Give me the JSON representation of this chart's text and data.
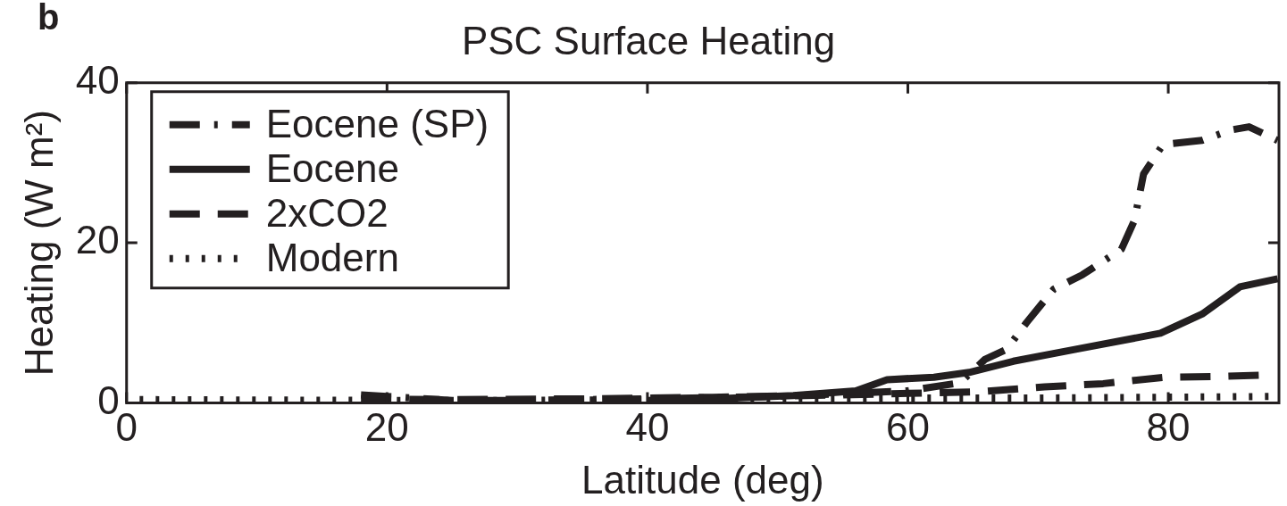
{
  "chart_data": {
    "type": "line",
    "title": "PSC Surface Heating",
    "xlabel": "Latitude (deg)",
    "ylabel": "Heating (W m²)",
    "annotations": [
      "b"
    ],
    "xlim": [
      0,
      88.5
    ],
    "xticks": [
      0,
      20,
      40,
      60,
      80
    ],
    "ylim": [
      0,
      40
    ],
    "yticks": [
      0,
      20,
      40
    ],
    "grid": false,
    "legend": "top left",
    "marker": "none",
    "series": [
      {
        "name": "Eocene (SP)",
        "color": "#231f20",
        "line_style": "dashdot",
        "x": [
          18,
          20,
          25,
          30,
          40,
          50,
          60,
          64,
          65.9,
          67.6,
          69.1,
          71.2,
          73.4,
          76.4,
          77.4,
          78.1,
          79.6,
          82.6,
          84.8,
          86.2,
          88.4
        ],
        "values": [
          1,
          0.8,
          0.3,
          0.3,
          0.5,
          0.8,
          1.5,
          2.5,
          5.4,
          6.7,
          10,
          14.2,
          16,
          19.2,
          22.8,
          28.6,
          32.3,
          32.8,
          34.1,
          34.5,
          32.8
        ]
      },
      {
        "name": "Eocene",
        "color": "#231f20",
        "line_style": "solid",
        "x": [
          40,
          45,
          51.2,
          56,
          58.4,
          62,
          64.7,
          68.1,
          72.9,
          79.4,
          82.6,
          85.5,
          88.4
        ],
        "values": [
          0.3,
          0.5,
          0.9,
          1.5,
          2.9,
          3.2,
          3.8,
          5.2,
          6.7,
          8.7,
          11.1,
          14.5,
          15.5
        ]
      },
      {
        "name": "2xCO2",
        "color": "#231f20",
        "line_style": "dashed",
        "x": [
          18,
          25,
          35,
          45,
          55,
          65.7,
          70.5,
          75,
          79.7,
          84.2,
          88
        ],
        "values": [
          0.5,
          0.4,
          0.5,
          0.7,
          1,
          1.4,
          2,
          2.4,
          3.2,
          3.3,
          3.5
        ]
      },
      {
        "name": "Modern",
        "color": "#231f20",
        "line_style": "dotted",
        "x": [
          1,
          20,
          30,
          40,
          50,
          60,
          70,
          80,
          88
        ],
        "values": [
          0.4,
          0.3,
          0.3,
          0.4,
          0.5,
          0.6,
          0.6,
          0.7,
          0.8
        ]
      }
    ]
  }
}
